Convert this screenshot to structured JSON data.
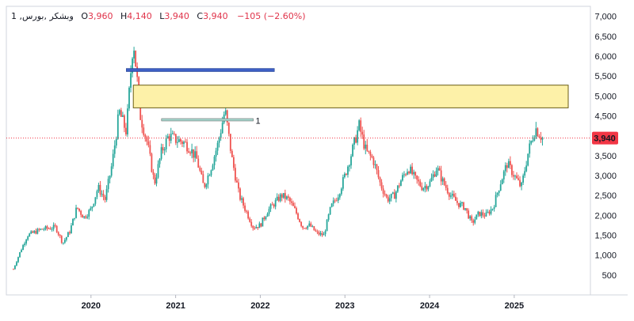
{
  "header": {
    "symbol": "1 ,وبشکر ,بورس",
    "o_label": "O",
    "o_value": "3,960",
    "h_label": "H",
    "h_value": "4,140",
    "l_label": "L",
    "l_value": "3,940",
    "c_label": "C",
    "c_value": "3,940",
    "change": "−105 (−2.60%)"
  },
  "colors": {
    "up": "#26a69a",
    "down": "#ef5350",
    "zone_fill": "#fdf1a8",
    "zone_border": "#6b5d14",
    "blue_line": "#3d5fc4",
    "price_badge": "#f23645"
  },
  "chart_data": {
    "type": "candlestick",
    "ylim": [
      0,
      7250
    ],
    "yticks": [
      500,
      1000,
      1500,
      2000,
      2500,
      3000,
      3500,
      4000,
      4500,
      5000,
      5500,
      6000,
      6500,
      7000
    ],
    "ytick_labels": [
      "500",
      "1,000",
      "1,500",
      "2,000",
      "2,500",
      "3,000",
      "3,500",
      "4,000",
      "4,500",
      "5,000",
      "5,500",
      "6,000",
      "6,500",
      "7,000"
    ],
    "xticks": [
      "2020",
      "2021",
      "2022",
      "2023",
      "2024",
      "2025"
    ],
    "last_price": 3940,
    "last_price_label": "3,940",
    "price_path": [
      [
        "2019-02",
        650
      ],
      [
        "2019-03",
        1100
      ],
      [
        "2019-04",
        1500
      ],
      [
        "2019-06",
        1650
      ],
      [
        "2019-08",
        1700
      ],
      [
        "2019-09",
        1300
      ],
      [
        "2019-10",
        1600
      ],
      [
        "2019-11",
        2200
      ],
      [
        "2019-12",
        1950
      ],
      [
        "2020-01",
        2150
      ],
      [
        "2020-02",
        2700
      ],
      [
        "2020-03",
        2400
      ],
      [
        "2020-04",
        3300
      ],
      [
        "2020-05",
        4600
      ],
      [
        "2020-06",
        4100
      ],
      [
        "2020-07",
        6450
      ],
      [
        "2020-08",
        4500
      ],
      [
        "2020-09",
        3800
      ],
      [
        "2020-10",
        2800
      ],
      [
        "2020-11",
        3600
      ],
      [
        "2020-12",
        4000
      ],
      [
        "2021-01",
        3900
      ],
      [
        "2021-02",
        3850
      ],
      [
        "2021-03",
        3700
      ],
      [
        "2021-04",
        3400
      ],
      [
        "2021-05",
        2700
      ],
      [
        "2021-06",
        3200
      ],
      [
        "2021-07",
        3800
      ],
      [
        "2021-08",
        4650
      ],
      [
        "2021-09",
        3400
      ],
      [
        "2021-10",
        2500
      ],
      [
        "2021-11",
        2100
      ],
      [
        "2021-12",
        1700
      ],
      [
        "2022-01",
        1750
      ],
      [
        "2022-02",
        2100
      ],
      [
        "2022-03",
        2300
      ],
      [
        "2022-04",
        2500
      ],
      [
        "2022-05",
        2400
      ],
      [
        "2022-06",
        2100
      ],
      [
        "2022-07",
        1700
      ],
      [
        "2022-08",
        1750
      ],
      [
        "2022-09",
        1550
      ],
      [
        "2022-10",
        1500
      ],
      [
        "2022-11",
        2200
      ],
      [
        "2022-12",
        2500
      ],
      [
        "2023-01",
        3000
      ],
      [
        "2023-02",
        3600
      ],
      [
        "2023-03",
        4250
      ],
      [
        "2023-04",
        3600
      ],
      [
        "2023-05",
        3400
      ],
      [
        "2023-06",
        2800
      ],
      [
        "2023-07",
        2400
      ],
      [
        "2023-08",
        2500
      ],
      [
        "2023-09",
        2900
      ],
      [
        "2023-10",
        3200
      ],
      [
        "2023-11",
        2900
      ],
      [
        "2023-12",
        2700
      ],
      [
        "2024-01",
        2800
      ],
      [
        "2024-02",
        3200
      ],
      [
        "2024-03",
        2800
      ],
      [
        "2024-04",
        2500
      ],
      [
        "2024-05",
        2300
      ],
      [
        "2024-06",
        2200
      ],
      [
        "2024-07",
        1800
      ],
      [
        "2024-08",
        2050
      ],
      [
        "2024-09",
        2000
      ],
      [
        "2024-10",
        2200
      ],
      [
        "2024-11",
        2800
      ],
      [
        "2024-12",
        3300
      ],
      [
        "2025-01",
        3000
      ],
      [
        "2025-02",
        2700
      ],
      [
        "2025-03",
        3600
      ],
      [
        "2025-04",
        4200
      ],
      [
        "2025-05",
        3940
      ]
    ],
    "annotations": {
      "blue_line": {
        "price": 5650,
        "from": "2020-06",
        "to": "2022-03"
      },
      "zone": {
        "low": 4700,
        "high": 5270,
        "from": "2020-07",
        "to": "2026-01"
      },
      "teal_line": {
        "price": 4400,
        "from": "2020-11",
        "to": "2021-12",
        "label": "1"
      }
    }
  }
}
